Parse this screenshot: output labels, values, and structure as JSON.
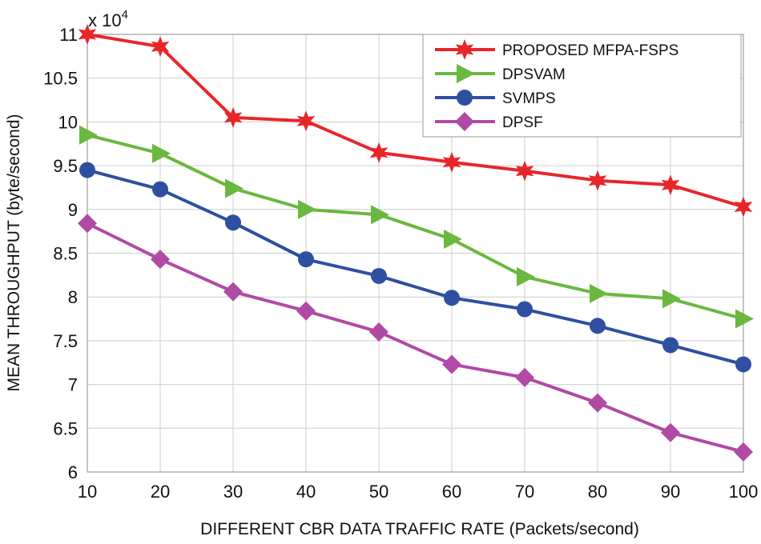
{
  "chart_data": {
    "type": "line",
    "title": "",
    "xlabel": "DIFFERENT CBR DATA TRAFFIC RATE (Packets/second)",
    "ylabel": "MEAN THROUGHPUT (byte/second)",
    "y_multiplier_label": "x 10",
    "y_multiplier_exponent": "4",
    "x": [
      10,
      20,
      30,
      40,
      50,
      60,
      70,
      80,
      90,
      100
    ],
    "xlim": [
      10,
      100
    ],
    "ylim": [
      6,
      11
    ],
    "x_ticks": [
      "10",
      "20",
      "30",
      "40",
      "50",
      "60",
      "70",
      "80",
      "90",
      "100"
    ],
    "y_ticks": [
      "6",
      "6.5",
      "7",
      "7.5",
      "8",
      "8.5",
      "9",
      "9.5",
      "10",
      "10.5",
      "11"
    ],
    "grid": true,
    "legend_placement": "top-right",
    "series": [
      {
        "name": "PROPOSED MFPA-FSPS",
        "color": "#e8262a",
        "marker": "star",
        "values": [
          11.0,
          10.86,
          10.05,
          10.01,
          9.65,
          9.54,
          9.44,
          9.33,
          9.28,
          9.03
        ]
      },
      {
        "name": "DPSVAM",
        "color": "#6ab83f",
        "marker": "triangle-right",
        "values": [
          9.85,
          9.64,
          9.24,
          9.0,
          8.94,
          8.66,
          8.23,
          8.04,
          7.98,
          7.75
        ]
      },
      {
        "name": "SVMPS",
        "color": "#2f4fa0",
        "marker": "circle",
        "values": [
          9.45,
          9.23,
          8.85,
          8.43,
          8.24,
          7.99,
          7.86,
          7.67,
          7.45,
          7.23
        ]
      },
      {
        "name": "DPSF",
        "color": "#b04aa5",
        "marker": "diamond",
        "values": [
          8.84,
          8.43,
          8.06,
          7.84,
          7.6,
          7.23,
          7.08,
          6.79,
          6.45,
          6.23
        ]
      }
    ]
  }
}
